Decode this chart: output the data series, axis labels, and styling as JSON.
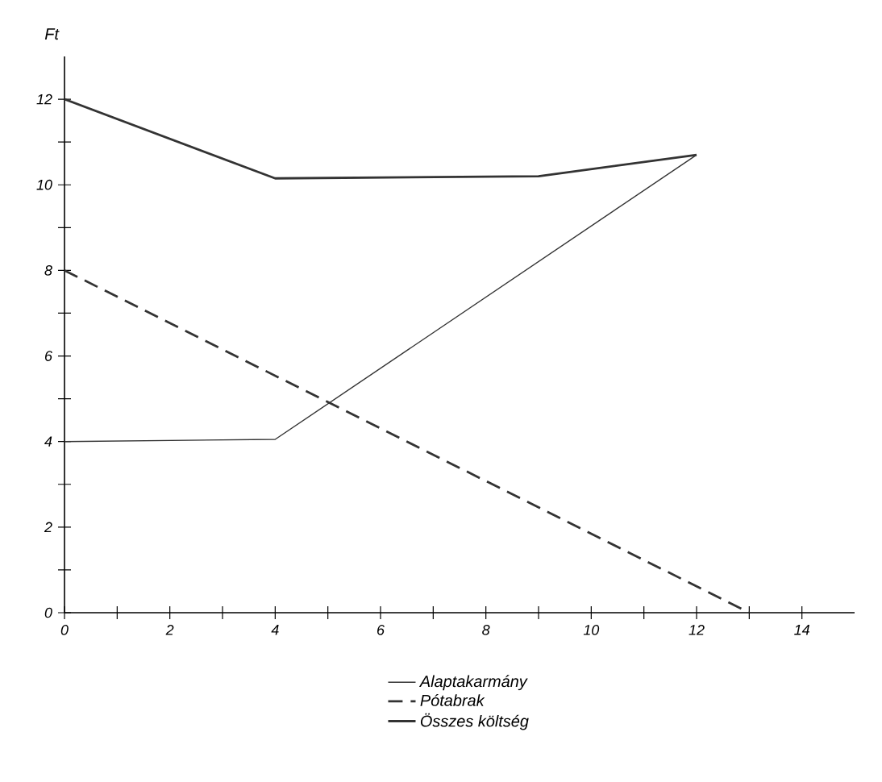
{
  "chart_data": {
    "type": "line",
    "ylabel": "Ft",
    "xlim": [
      0,
      15
    ],
    "ylim": [
      0,
      13
    ],
    "xticks": [
      0,
      {
        "value": 1,
        "label": null
      },
      2,
      {
        "value": 3,
        "label": null
      },
      4,
      {
        "value": 5,
        "label": null
      },
      6,
      {
        "value": 7,
        "label": null
      },
      8,
      {
        "value": 9,
        "label": null
      },
      10,
      {
        "value": 11,
        "label": null
      },
      12,
      {
        "value": 13,
        "label": null
      },
      14
    ],
    "yticks": [
      0,
      {
        "value": 1,
        "label": null
      },
      2,
      {
        "value": 3,
        "label": null
      },
      4,
      {
        "value": 5,
        "label": null
      },
      6,
      {
        "value": 7,
        "label": null
      },
      8,
      {
        "value": 9,
        "label": null
      },
      10,
      {
        "value": 11,
        "label": null
      },
      12
    ],
    "grid": false,
    "legend": "bottom",
    "marker": "none",
    "series": [
      {
        "name": "Alaptakarmány",
        "color": "#333333",
        "line_style": "solid",
        "x": [
          0,
          4,
          12
        ],
        "values": [
          4,
          4.05,
          10.7
        ]
      },
      {
        "name": "Pótabrak",
        "color": "#333333",
        "line_style": "dashed",
        "x": [
          0,
          13
        ],
        "values": [
          8,
          0
        ]
      },
      {
        "name": "Összes költség",
        "color": "#333333",
        "line_style": "solid",
        "x": [
          0,
          4,
          9,
          12
        ],
        "values": [
          12,
          10.15,
          10.2,
          10.7
        ]
      }
    ]
  }
}
